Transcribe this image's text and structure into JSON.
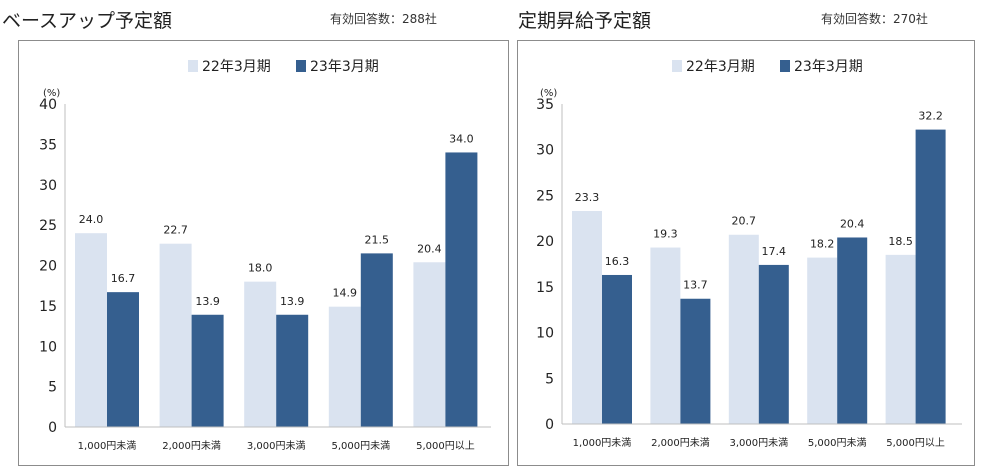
{
  "panels": [
    {
      "title": "ベースアップ予定額",
      "count": "有効回答数：288社",
      "chart_data": {
        "type": "bar",
        "categories": [
          "1,000円未満",
          "2,000円未満",
          "3,000円未満",
          "5,000円未満",
          "5,000円以上"
        ],
        "series": [
          {
            "name": "22年3月期",
            "values": [
              24.0,
              22.7,
              18.0,
              14.9,
              20.4
            ],
            "color": "#dae3f0"
          },
          {
            "name": "23年3月期",
            "values": [
              16.7,
              13.9,
              13.9,
              21.5,
              34.0
            ],
            "color": "#355f8f"
          }
        ],
        "ylabel": "(%)",
        "ylim": [
          0,
          40
        ],
        "yticks": [
          0,
          5,
          10,
          15,
          20,
          25,
          30,
          35,
          40
        ],
        "legend": "top-center",
        "grid": false
      }
    },
    {
      "title": "定期昇給予定額",
      "count": "有効回答数：270社",
      "chart_data": {
        "type": "bar",
        "categories": [
          "1,000円未満",
          "2,000円未満",
          "3,000円未満",
          "5,000円未満",
          "5,000円以上"
        ],
        "series": [
          {
            "name": "22年3月期",
            "values": [
              23.3,
              19.3,
              20.7,
              18.2,
              18.5
            ],
            "color": "#dae3f0"
          },
          {
            "name": "23年3月期",
            "values": [
              16.3,
              13.7,
              17.4,
              20.4,
              32.2
            ],
            "color": "#355f8f"
          }
        ],
        "ylabel": "(%)",
        "ylim": [
          0,
          35
        ],
        "yticks": [
          0,
          5,
          10,
          15,
          20,
          25,
          30,
          35
        ],
        "legend": "top-center",
        "grid": false
      }
    }
  ]
}
